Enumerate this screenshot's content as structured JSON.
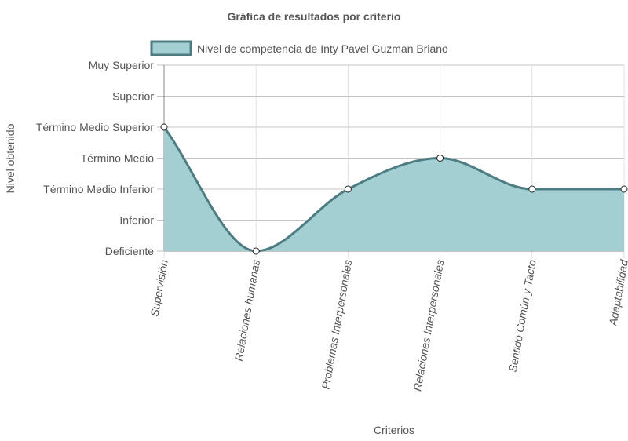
{
  "chart_data": {
    "type": "area",
    "title": "Gráfica de resultados por criterio",
    "xlabel": "Criterios",
    "ylabel": "Nivel obtenido",
    "categories": [
      "Supervisión",
      "Relaciones humanas",
      "Problemas Interpersonales",
      "Relaciones Interpersonales",
      "Sentido Común y Tacto",
      "Adaptabilidad"
    ],
    "y_levels": [
      "Deficiente",
      "Inferior",
      "Término Medio Inferior",
      "Término Medio",
      "Término Medio Superior",
      "Superior",
      "Muy Superior"
    ],
    "ylim": [
      0,
      6
    ],
    "grid": true,
    "legend_position": "top",
    "series": [
      {
        "name": "Nivel de competencia de Inty Pavel Guzman Briano",
        "values": [
          4,
          0,
          2,
          3,
          2,
          2
        ],
        "line_color": "#4e7c83",
        "fill_color": "#a3cfd3"
      }
    ]
  }
}
